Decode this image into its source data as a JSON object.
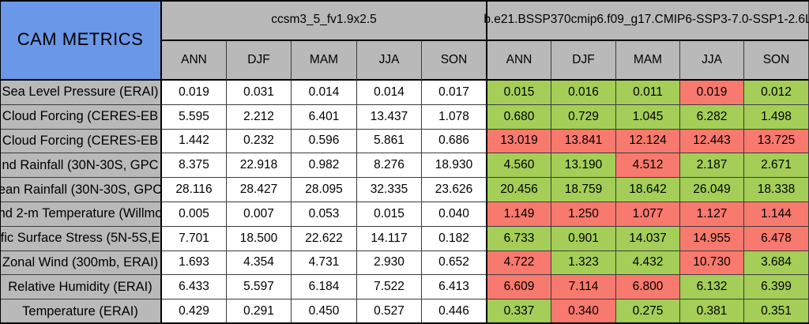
{
  "chart_data": {
    "type": "table",
    "corner_title": "CAM METRICS",
    "groups": [
      {
        "label": "ccsm3_5_fv1.9x2.5",
        "columns": [
          "ANN",
          "DJF",
          "MAM",
          "JJA",
          "SON"
        ]
      },
      {
        "label": "b.e21.BSSP370cmip6.f09_g17.CMIP6-SSP3-7.0-SSP1-2.6L",
        "columns": [
          "ANN",
          "DJF",
          "MAM",
          "JJA",
          "SON"
        ]
      }
    ],
    "rows": [
      {
        "label": "Sea Level Pressure (ERAI)",
        "model1": [
          "0.019",
          "0.031",
          "0.014",
          "0.014",
          "0.017"
        ],
        "model2": {
          "values": [
            "0.015",
            "0.016",
            "0.011",
            "0.019",
            "0.012"
          ],
          "status": [
            "good",
            "good",
            "good",
            "bad",
            "good"
          ]
        }
      },
      {
        "label": "Cloud Forcing (CERES-EB",
        "model1": [
          "5.595",
          "2.212",
          "6.401",
          "13.437",
          "1.078"
        ],
        "model2": {
          "values": [
            "0.680",
            "0.729",
            "1.045",
            "6.282",
            "1.498"
          ],
          "status": [
            "good",
            "good",
            "good",
            "good",
            "good"
          ]
        }
      },
      {
        "label": "Cloud Forcing (CERES-EB",
        "model1": [
          "1.442",
          "0.232",
          "0.596",
          "5.861",
          "0.686"
        ],
        "model2": {
          "values": [
            "13.019",
            "13.841",
            "12.124",
            "12.443",
            "13.725"
          ],
          "status": [
            "bad",
            "bad",
            "bad",
            "bad",
            "bad"
          ]
        }
      },
      {
        "label": "nd Rainfall (30N-30S, GPC",
        "model1": [
          "8.375",
          "22.918",
          "0.982",
          "8.276",
          "18.930"
        ],
        "model2": {
          "values": [
            "4.560",
            "13.190",
            "4.512",
            "2.187",
            "2.671"
          ],
          "status": [
            "good",
            "good",
            "bad",
            "good",
            "good"
          ]
        }
      },
      {
        "label": "ean Rainfall (30N-30S, GPC",
        "model1": [
          "28.116",
          "28.427",
          "28.095",
          "32.335",
          "23.626"
        ],
        "model2": {
          "values": [
            "20.456",
            "18.759",
            "18.642",
            "26.049",
            "18.338"
          ],
          "status": [
            "good",
            "good",
            "good",
            "good",
            "good"
          ]
        }
      },
      {
        "label": "nd 2-m Temperature (Willmo",
        "model1": [
          "0.005",
          "0.007",
          "0.053",
          "0.015",
          "0.040"
        ],
        "model2": {
          "values": [
            "1.149",
            "1.250",
            "1.077",
            "1.127",
            "1.144"
          ],
          "status": [
            "bad",
            "bad",
            "bad",
            "bad",
            "bad"
          ]
        }
      },
      {
        "label": "fic Surface Stress (5N-5S,E",
        "model1": [
          "7.701",
          "18.500",
          "22.622",
          "14.117",
          "0.182"
        ],
        "model2": {
          "values": [
            "6.733",
            "0.901",
            "14.037",
            "14.955",
            "6.478"
          ],
          "status": [
            "good",
            "good",
            "good",
            "bad",
            "bad"
          ]
        }
      },
      {
        "label": "Zonal Wind (300mb, ERAI)",
        "model1": [
          "1.693",
          "4.354",
          "4.731",
          "2.930",
          "0.652"
        ],
        "model2": {
          "values": [
            "4.722",
            "1.323",
            "4.432",
            "10.730",
            "3.684"
          ],
          "status": [
            "bad",
            "good",
            "good",
            "bad",
            "good"
          ]
        }
      },
      {
        "label": "Relative Humidity (ERAI)",
        "model1": [
          "6.433",
          "5.597",
          "6.184",
          "7.522",
          "6.413"
        ],
        "model2": {
          "values": [
            "6.609",
            "7.114",
            "6.800",
            "6.132",
            "6.399"
          ],
          "status": [
            "bad",
            "bad",
            "bad",
            "good",
            "good"
          ]
        }
      },
      {
        "label": "Temperature (ERAI)",
        "model1": [
          "0.429",
          "0.291",
          "0.450",
          "0.527",
          "0.446"
        ],
        "model2": {
          "values": [
            "0.337",
            "0.340",
            "0.275",
            "0.381",
            "0.351"
          ],
          "status": [
            "good",
            "bad",
            "good",
            "good",
            "good"
          ]
        }
      }
    ],
    "colors": {
      "green": "#a4ce58",
      "red": "#f8796d",
      "blue": "#6b97e8",
      "gray": "#b9b9b9"
    }
  }
}
